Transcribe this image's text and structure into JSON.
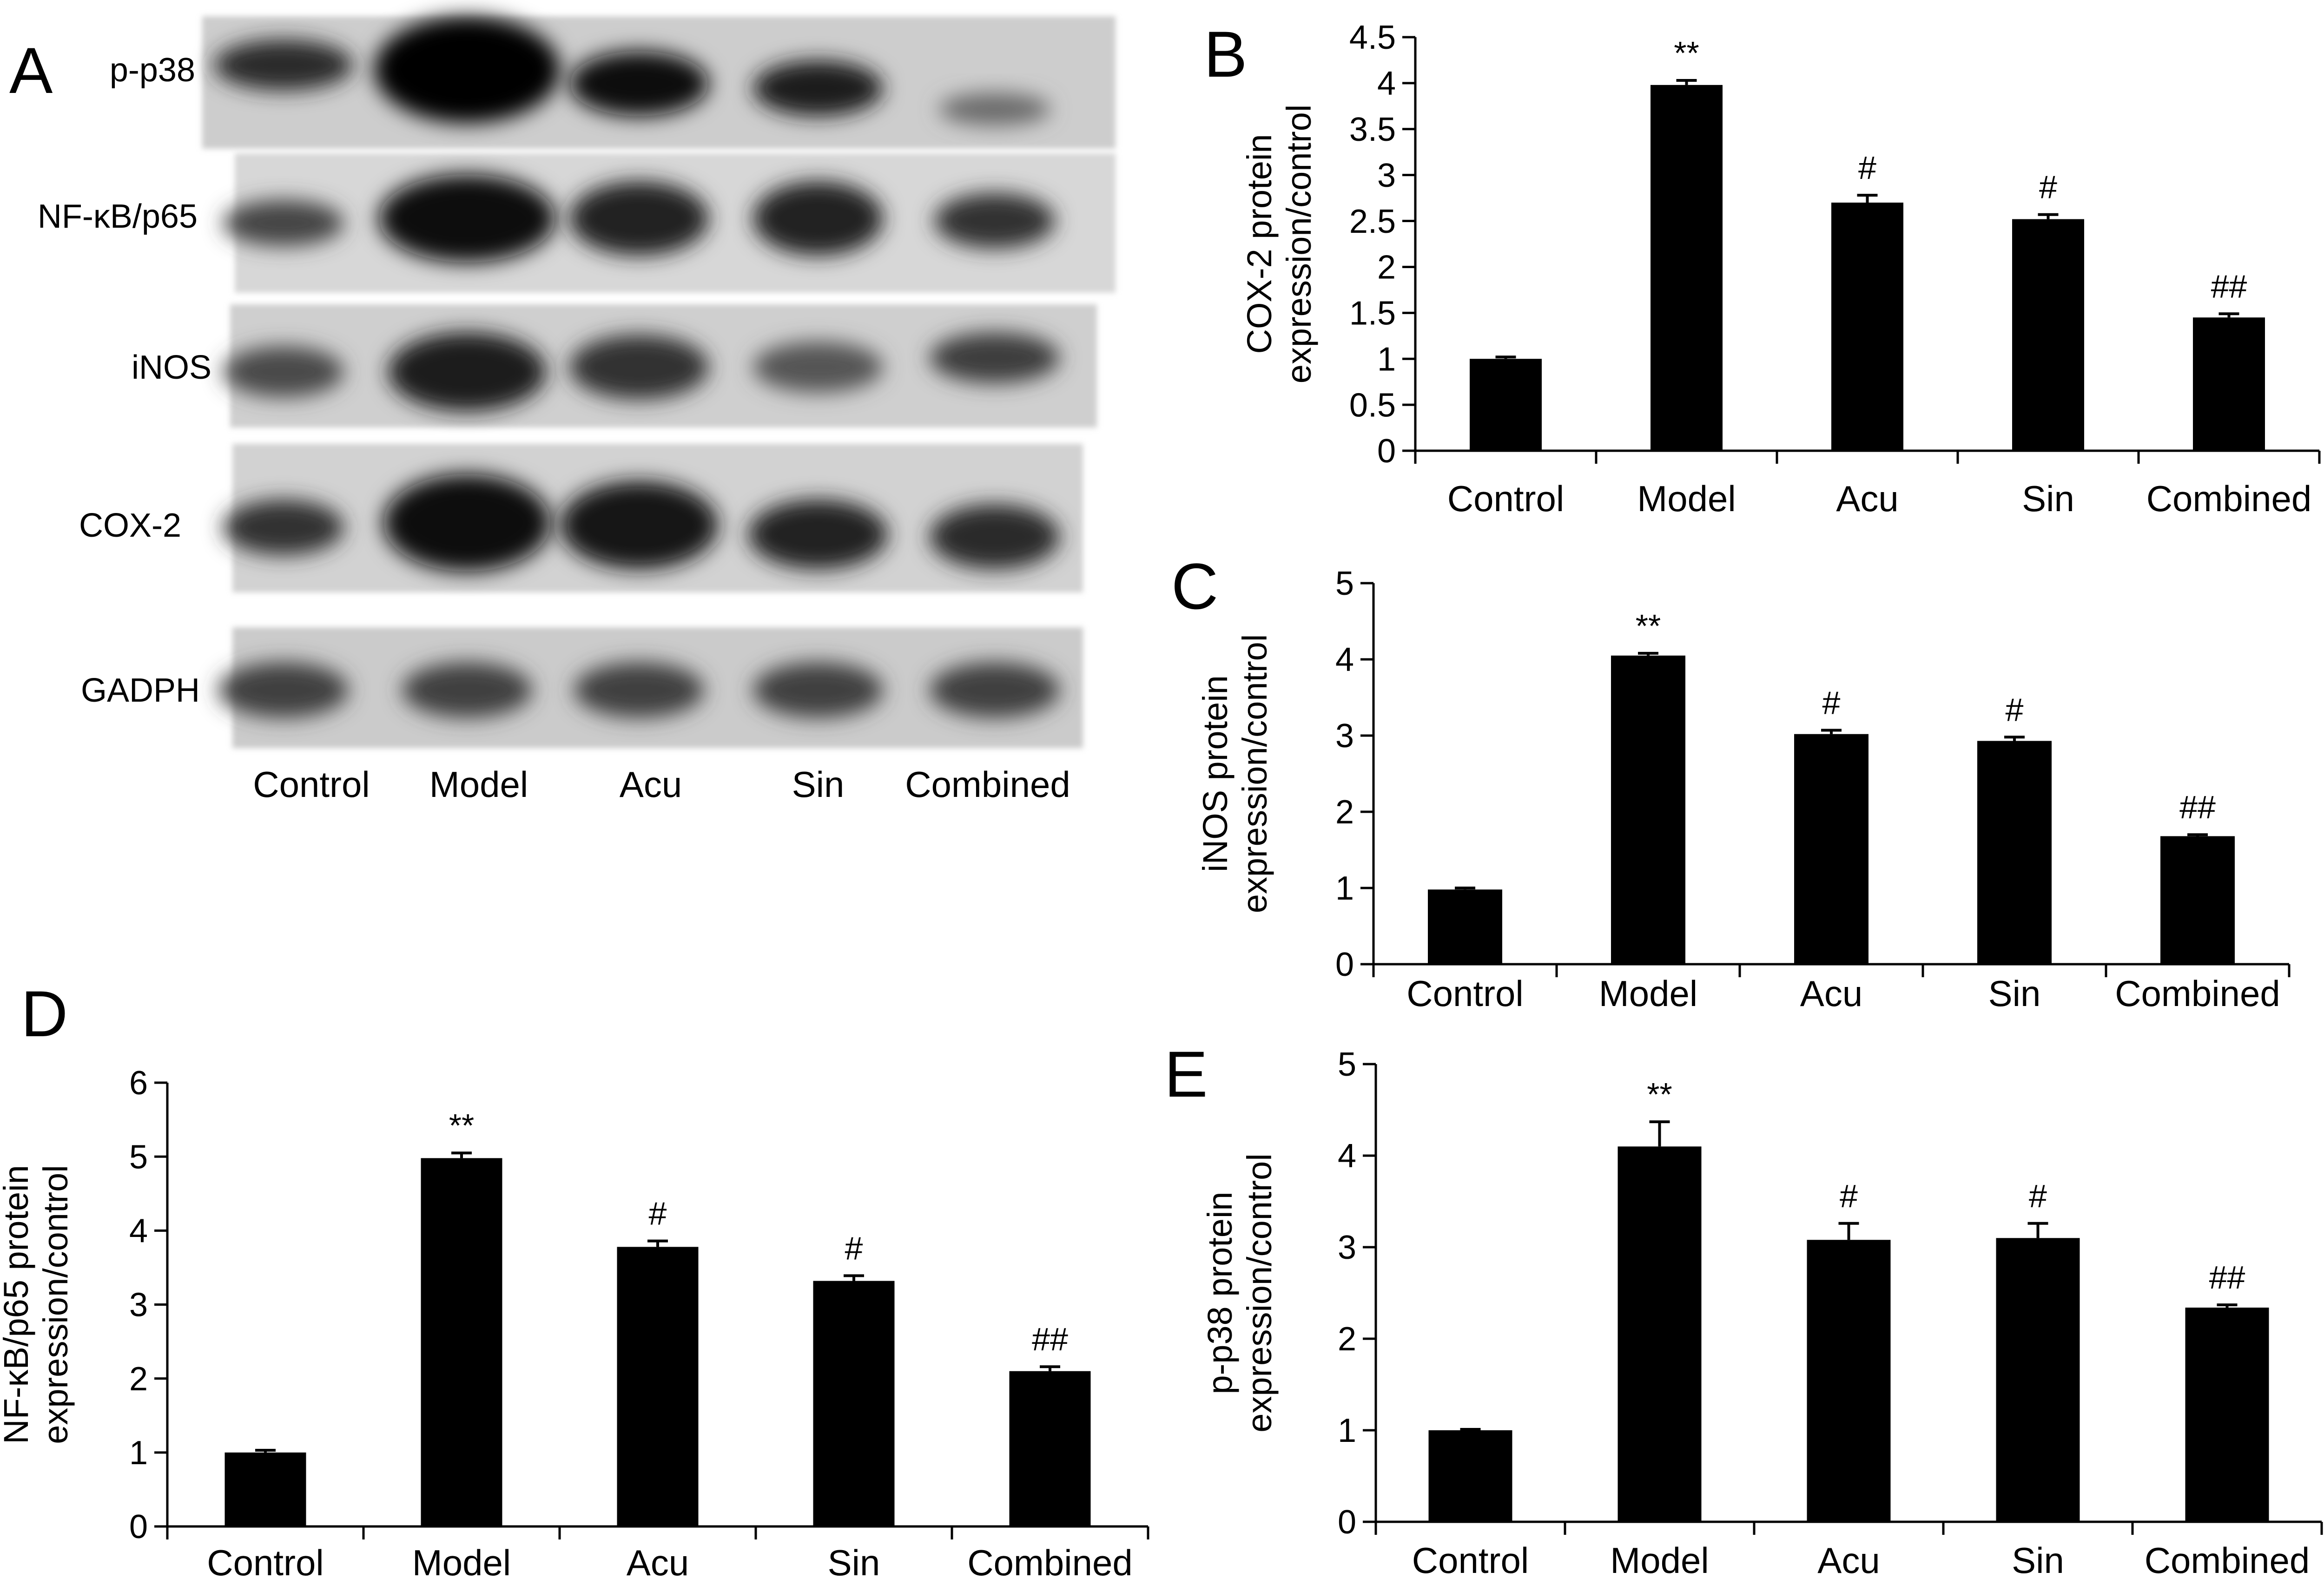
{
  "panel_letters": [
    "A",
    "B",
    "C",
    "D",
    "E"
  ],
  "blot": {
    "band_labels": [
      "p-p38",
      "NF-κB/p65",
      "iNOS",
      "COX-2",
      "GADPH"
    ],
    "lane_labels": [
      "Control",
      "Model",
      "Acu",
      "Sin",
      "Combined"
    ]
  },
  "chart_data": [
    {
      "panel": "B",
      "type": "bar",
      "categories": [
        "Control",
        "Model",
        "Acu",
        "Sin",
        "Combined"
      ],
      "values": [
        1.0,
        3.98,
        2.7,
        2.52,
        1.45
      ],
      "errors": [
        0.02,
        0.05,
        0.08,
        0.05,
        0.04
      ],
      "annotations": [
        "",
        "**",
        "#",
        "#",
        "##"
      ],
      "ylabel": "COX-2 protein expression/control",
      "ylabel_lines": [
        "COX-2 protein",
        "expression/control"
      ],
      "ylim": [
        0,
        4.5
      ],
      "yticks": [
        "0",
        "0.5",
        "1",
        "1.5",
        "2",
        "2.5",
        "3",
        "3.5",
        "4",
        "4.5"
      ],
      "xlabel": "",
      "grid": false,
      "bar_color": "#000000"
    },
    {
      "panel": "C",
      "type": "bar",
      "categories": [
        "Control",
        "Model",
        "Acu",
        "Sin",
        "Combined"
      ],
      "values": [
        0.98,
        4.05,
        3.02,
        2.93,
        1.68
      ],
      "errors": [
        0.02,
        0.03,
        0.05,
        0.05,
        0.02
      ],
      "annotations": [
        "",
        "**",
        "#",
        "#",
        "##"
      ],
      "ylabel": "iNOS protein expression/control",
      "ylabel_lines": [
        "iNOS protein",
        "expression/control"
      ],
      "ylim": [
        0,
        5
      ],
      "yticks": [
        "0",
        "1",
        "2",
        "3",
        "4",
        "5"
      ],
      "xlabel": "",
      "grid": false,
      "bar_color": "#000000"
    },
    {
      "panel": "D",
      "type": "bar",
      "categories": [
        "Control",
        "Model",
        "Acu",
        "Sin",
        "Combined"
      ],
      "values": [
        1.0,
        4.98,
        3.78,
        3.32,
        2.1
      ],
      "errors": [
        0.03,
        0.07,
        0.08,
        0.07,
        0.06
      ],
      "annotations": [
        "",
        "**",
        "#",
        "#",
        "##"
      ],
      "ylabel": "NF-κB/p65 protein expression/control",
      "ylabel_lines": [
        "NF-κB/p65 protein",
        "expression/control"
      ],
      "ylim": [
        0,
        6
      ],
      "yticks": [
        "0",
        "1",
        "2",
        "3",
        "4",
        "5",
        "6"
      ],
      "xlabel": "",
      "grid": false,
      "bar_color": "#000000"
    },
    {
      "panel": "E",
      "type": "bar",
      "categories": [
        "Control",
        "Model",
        "Acu",
        "Sin",
        "Combined"
      ],
      "values": [
        1.0,
        4.1,
        3.08,
        3.1,
        2.34
      ],
      "errors": [
        0.01,
        0.27,
        0.18,
        0.16,
        0.03
      ],
      "annotations": [
        "",
        "**",
        "#",
        "#",
        "##"
      ],
      "ylabel": "p-p38 protein expression/control",
      "ylabel_lines": [
        "p-p38 protein",
        "expression/control"
      ],
      "ylim": [
        0,
        5
      ],
      "yticks": [
        "0",
        "1",
        "2",
        "3",
        "4",
        "5"
      ],
      "xlabel": "",
      "grid": false,
      "bar_color": "#000000"
    }
  ]
}
